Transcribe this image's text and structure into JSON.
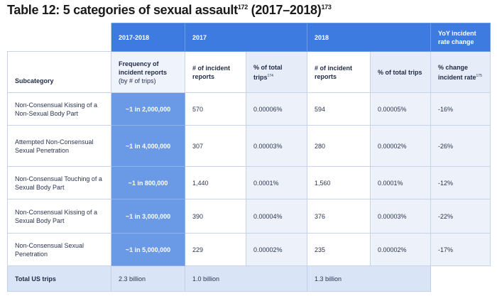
{
  "title": {
    "text": "Table 12: 5 categories of sexual assault",
    "sup1": "172",
    "years": " (2017–2018)",
    "sup2": "173"
  },
  "header_top": {
    "col_2017_2018": "2017-2018",
    "col_2017": "2017",
    "col_2018": "2018",
    "col_yoy": "YoY incident rate change"
  },
  "header_sub": {
    "subcategory": "Subcategory",
    "freq_line1": "Frequency of incident reports",
    "freq_line2": "(by # of trips)",
    "reports_2017": "# of incident reports",
    "pct_2017": "% of total trips",
    "pct_2017_sup": "174",
    "reports_2018": "# of incident reports",
    "pct_2018": "% of total trips",
    "yoy": "% change incident rate",
    "yoy_sup": "175"
  },
  "rows": [
    {
      "subcategory": "Non-Consensual Kissing of a Non-Sexual Body Part",
      "frequency": "~1 in 2,000,000",
      "reports_2017": "570",
      "pct_2017": "0.00006%",
      "reports_2018": "594",
      "pct_2018": "0.00005%",
      "yoy": "-16%"
    },
    {
      "subcategory": "Attempted Non-Consensual Sexual Penetration",
      "frequency": "~1 in 4,000,000",
      "reports_2017": "307",
      "pct_2017": "0.00003%",
      "reports_2018": "280",
      "pct_2018": "0.00002%",
      "yoy": "-26%"
    },
    {
      "subcategory": "Non-Consensual Touching of a Sexual Body Part",
      "frequency": "~1 in 800,000",
      "reports_2017": "1,440",
      "pct_2017": "0.0001%",
      "reports_2018": "1,560",
      "pct_2018": "0.0001%",
      "yoy": "-12%"
    },
    {
      "subcategory": "Non-Consensual Kissing of a Sexual Body Part",
      "frequency": "~1 in 3,000,000",
      "reports_2017": "390",
      "pct_2017": "0.00004%",
      "reports_2018": "376",
      "pct_2018": "0.00003%",
      "yoy": "-22%"
    },
    {
      "subcategory": "Non-Consensual Sexual Penetration",
      "frequency": "~1 in 5,000,000",
      "reports_2017": "229",
      "pct_2017": "0.00002%",
      "reports_2018": "235",
      "pct_2018": "0.00002%",
      "yoy": "-17%"
    }
  ],
  "total": {
    "label": "Total US trips",
    "v_2017_2018": "2.3 billion",
    "v_2017": "1.0 billion",
    "v_2018": "1.3 billion"
  },
  "colors": {
    "header_blue": "#3d7be0",
    "frequency_blue": "#6a99e6",
    "total_row": "#d9e5f6"
  }
}
